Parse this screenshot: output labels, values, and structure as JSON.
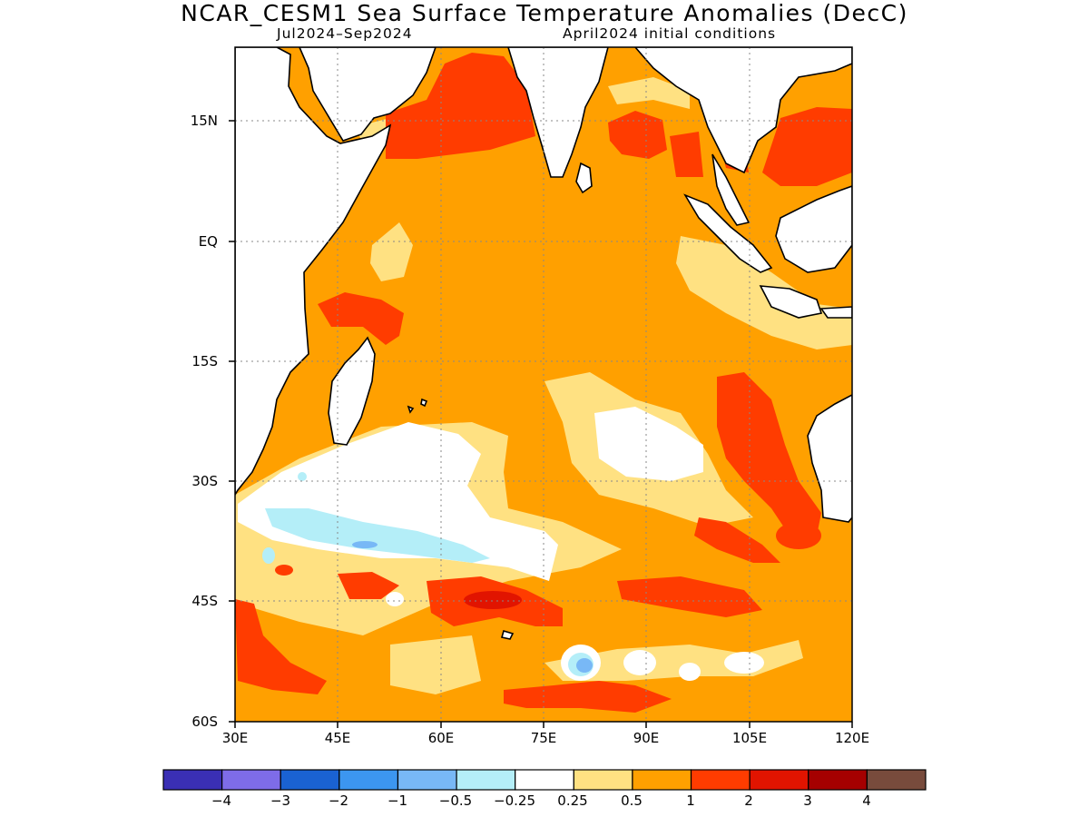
{
  "title": "NCAR_CESM1 Sea Surface Temperature Anomalies (DecC)",
  "subtitle_left": "Jul2024–Sep2024",
  "subtitle_right": "April2024 initial conditions",
  "map": {
    "region": "Indian Ocean",
    "lon_range_deg": [
      30,
      120
    ],
    "lat_range_deg": [
      -60,
      24
    ],
    "lat_labels": [
      "15N",
      "EQ",
      "15S",
      "30S",
      "45S",
      "60S"
    ],
    "lat_values": [
      15,
      0,
      -15,
      -30,
      -45,
      -60
    ],
    "lon_labels": [
      "30E",
      "45E",
      "60E",
      "75E",
      "90E",
      "105E",
      "120E"
    ],
    "lon_values": [
      30,
      45,
      60,
      75,
      90,
      105,
      120
    ],
    "gridlines": "dotted",
    "land_color": "#ffffff",
    "coastline_color": "#000000"
  },
  "colorbar": {
    "labels": [
      "−4",
      "−3",
      "−2",
      "−1",
      "−0.5",
      "−0.25",
      "0.25",
      "0.5",
      "1",
      "2",
      "3",
      "4"
    ],
    "colors": [
      "#3a2fb4",
      "#7e6ce8",
      "#1a62d2",
      "#3c96f0",
      "#78b8f6",
      "#b4eef8",
      "#ffffff",
      "#ffe182",
      "#ffa000",
      "#ff3c00",
      "#e11400",
      "#a50000",
      "#784b3c"
    ]
  },
  "legend_fill_colors": {
    "pos_0_25": "#ffe182",
    "pos_0_5": "#ffa000",
    "pos_1": "#ff3c00",
    "pos_2": "#e11400",
    "neutral": "#ffffff",
    "neg_0_25": "#b4eef8",
    "neg_0_5": "#78b8f6"
  }
}
